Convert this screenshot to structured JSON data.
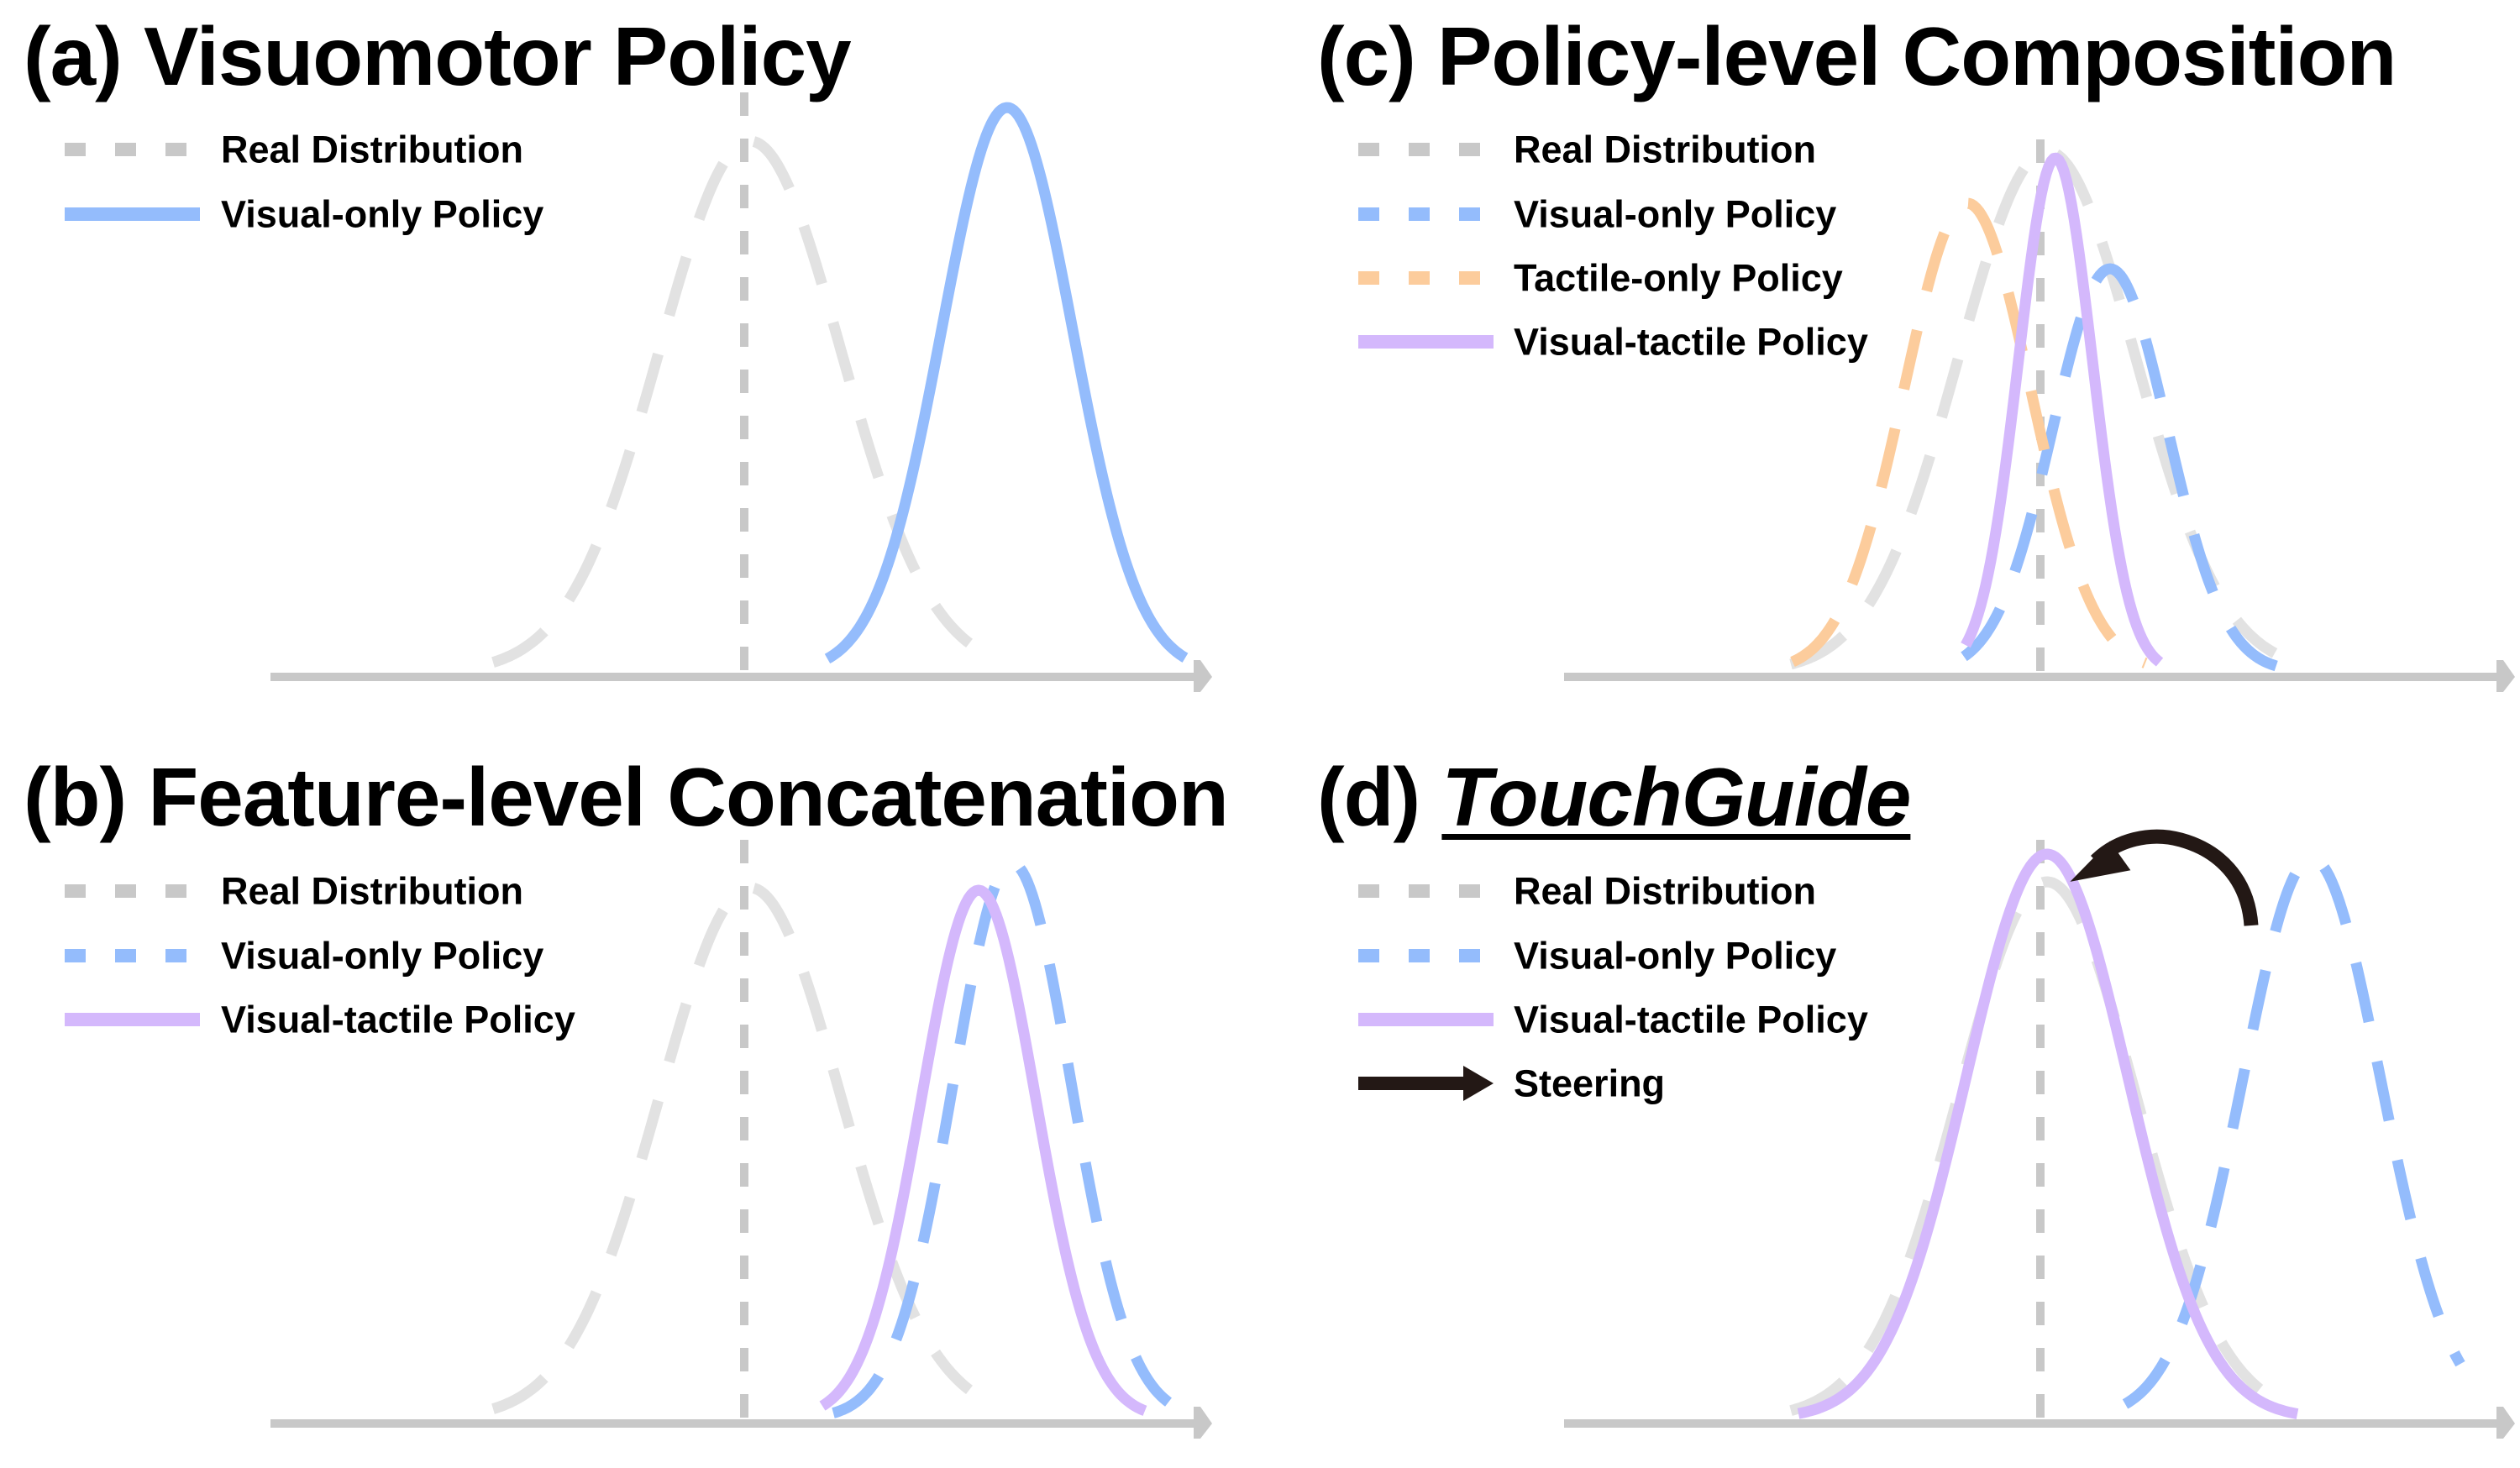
{
  "colors": {
    "real": "#e2e2e2",
    "real_legend": "#c8c8c8",
    "axis": "#c8c8c8",
    "visual_only": "#94bcfc",
    "tactile_only": "#fccc9c",
    "visual_tactile": "#d4b8fc",
    "steering": "#231815"
  },
  "panels": [
    {
      "id": "a",
      "prefix": "(a)",
      "title": "Visuomotor Policy",
      "title_emphasis": "",
      "legend": [
        {
          "label": "Real Distribution",
          "style": "dashed",
          "color_key": "real_legend"
        },
        {
          "label": "Visual-only Policy",
          "style": "solid",
          "color_key": "visual_only"
        }
      ]
    },
    {
      "id": "b",
      "prefix": "(b)",
      "title": "Feature-level Concatenation",
      "title_emphasis": "",
      "legend": [
        {
          "label": "Real Distribution",
          "style": "dashed",
          "color_key": "real_legend"
        },
        {
          "label": "Visual-only Policy",
          "style": "dashed",
          "color_key": "visual_only"
        },
        {
          "label": "Visual-tactile Policy",
          "style": "solid",
          "color_key": "visual_tactile"
        }
      ]
    },
    {
      "id": "c",
      "prefix": "(c)",
      "title": "Policy-level Composition",
      "title_emphasis": "",
      "legend": [
        {
          "label": "Real Distribution",
          "style": "dashed",
          "color_key": "real_legend"
        },
        {
          "label": "Visual-only Policy",
          "style": "dashed",
          "color_key": "visual_only"
        },
        {
          "label": "Tactile-only Policy",
          "style": "dashed",
          "color_key": "tactile_only"
        },
        {
          "label": "Visual-tactile Policy",
          "style": "solid",
          "color_key": "visual_tactile"
        }
      ]
    },
    {
      "id": "d",
      "prefix": "(d)",
      "title": "",
      "title_emphasis": "TouchGuide",
      "legend": [
        {
          "label": "Real Distribution",
          "style": "dashed",
          "color_key": "real_legend"
        },
        {
          "label": "Visual-only Policy",
          "style": "dashed",
          "color_key": "visual_only"
        },
        {
          "label": "Visual-tactile Policy",
          "style": "solid",
          "color_key": "visual_tactile"
        },
        {
          "label": "Steering",
          "style": "arrow",
          "color_key": "steering"
        }
      ]
    }
  ],
  "chart_data": [
    {
      "type": "line",
      "title": "(a) Visuomotor Policy",
      "xlabel": "",
      "ylabel": "",
      "grid": false,
      "legend_position": "upper left",
      "axis": {
        "x_start": 322,
        "x_end": 1443,
        "y": 806
      },
      "reference_line": {
        "x": 886,
        "y_top": 110,
        "style": "dashed"
      },
      "series": [
        {
          "name": "Real Distribution",
          "style": "dashed",
          "color_key": "real",
          "mu": 893,
          "sigma": 108,
          "peak_y": 168,
          "x_min": 587,
          "x_max": 1155
        },
        {
          "name": "Visual-only Policy",
          "style": "solid",
          "color_key": "visual_only",
          "mu": 1199,
          "sigma": 78,
          "peak_y": 128,
          "x_min": 985,
          "x_max": 1413
        }
      ]
    },
    {
      "type": "line",
      "title": "(b) Feature-level Concatenation",
      "xlabel": "",
      "ylabel": "",
      "grid": false,
      "legend_position": "upper left",
      "axis": {
        "x_start": 322,
        "x_end": 1443,
        "y": 1695
      },
      "reference_line": {
        "x": 886,
        "y_top": 1000,
        "style": "dashed"
      },
      "series": [
        {
          "name": "Real Distribution",
          "style": "dashed",
          "color_key": "real",
          "mu": 893,
          "sigma": 108,
          "peak_y": 1057,
          "x_min": 587,
          "x_max": 1155
        },
        {
          "name": "Visual-only Policy",
          "style": "dashed",
          "color_key": "visual_only",
          "mu": 1205,
          "sigma": 70,
          "peak_y": 1028,
          "x_min": 992,
          "x_max": 1392
        },
        {
          "name": "Visual-tactile Policy",
          "style": "solid",
          "color_key": "visual_tactile",
          "mu": 1165,
          "sigma": 68,
          "peak_y": 1060,
          "x_min": 979,
          "x_max": 1365
        }
      ]
    },
    {
      "type": "line",
      "title": "(c) Policy-level Composition",
      "xlabel": "",
      "ylabel": "",
      "grid": false,
      "legend_position": "upper left",
      "axis": {
        "x_start": 1862,
        "x_end": 2994,
        "y": 806
      },
      "reference_line": {
        "x": 2429,
        "y_top": 166,
        "style": "dashed"
      },
      "series": [
        {
          "name": "Real Distribution",
          "style": "dashed",
          "color_key": "real",
          "mu": 2437,
          "sigma": 105,
          "peak_y": 180,
          "x_min": 2132,
          "x_max": 2708
        },
        {
          "name": "Visual-only Policy",
          "style": "dashed",
          "color_key": "visual_only",
          "mu": 2512,
          "sigma": 68,
          "peak_y": 320,
          "x_min": 2338,
          "x_max": 2735
        },
        {
          "name": "Tactile-only Policy",
          "style": "dashed",
          "color_key": "tactile_only",
          "mu": 2342,
          "sigma": 75,
          "peak_y": 242,
          "x_min": 2134,
          "x_max": 2555
        },
        {
          "name": "Visual-tactile Policy",
          "style": "solid",
          "color_key": "visual_tactile",
          "mu": 2447,
          "sigma": 44,
          "peak_y": 188,
          "x_min": 2340,
          "x_max": 2573
        }
      ]
    },
    {
      "type": "line",
      "title": "(d) TouchGuide",
      "xlabel": "",
      "ylabel": "",
      "grid": false,
      "legend_position": "upper left",
      "axis": {
        "x_start": 1862,
        "x_end": 2994,
        "y": 1695
      },
      "reference_line": {
        "x": 2429,
        "y_top": 1000,
        "style": "dashed"
      },
      "series": [
        {
          "name": "Real Distribution",
          "style": "dashed",
          "color_key": "real",
          "mu": 2437,
          "sigma": 105,
          "peak_y": 1050,
          "x_min": 2132,
          "x_max": 2708
        },
        {
          "name": "Visual-only Policy",
          "style": "dashed",
          "color_key": "visual_only",
          "mu": 2752,
          "sigma": 82,
          "peak_y": 1022,
          "x_min": 2530,
          "x_max": 2930
        },
        {
          "name": "Visual-tactile Policy",
          "style": "solid",
          "color_key": "visual_tactile",
          "mu": 2437,
          "sigma": 96,
          "peak_y": 1017,
          "x_min": 2141,
          "x_max": 2736
        }
      ],
      "annotations": [
        {
          "type": "curved-arrow",
          "label": "Steering",
          "from": [
            2662,
            1102
          ],
          "to": [
            2424,
            1036
          ]
        }
      ]
    }
  ]
}
